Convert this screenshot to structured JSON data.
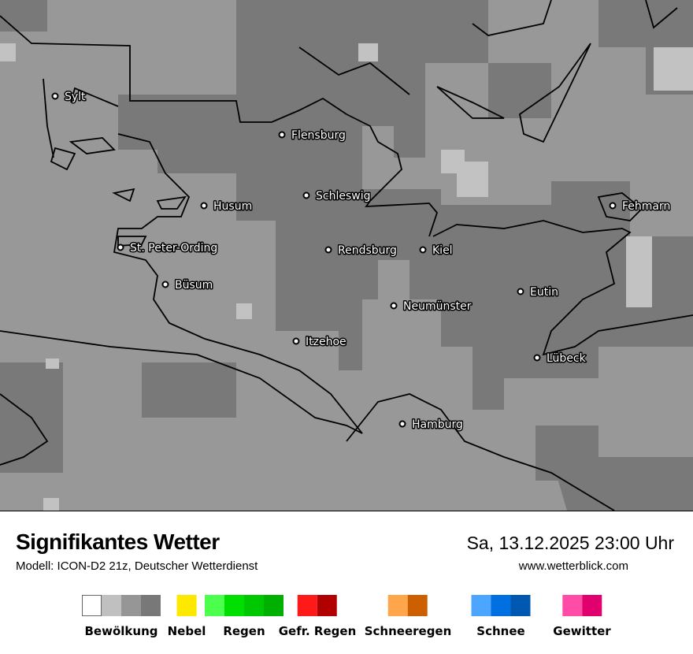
{
  "map": {
    "cities": [
      {
        "name": "Sylt"
      },
      {
        "name": "Flensburg"
      },
      {
        "name": "Schleswig"
      },
      {
        "name": "Husum"
      },
      {
        "name": "St. Peter-Ording"
      },
      {
        "name": "Rendsburg"
      },
      {
        "name": "Kiel"
      },
      {
        "name": "Fehmarn"
      },
      {
        "name": "Büsum"
      },
      {
        "name": "Eutin"
      },
      {
        "name": "Neumünster"
      },
      {
        "name": "Itzehoe"
      },
      {
        "name": "Lübeck"
      },
      {
        "name": "Hamburg"
      }
    ]
  },
  "footer": {
    "title": "Signifikantes Wetter",
    "model": "Modell: ICON-D2 21z, Deutscher Wetterdienst",
    "datetime": "Sa, 13.12.2025 23:00 Uhr",
    "website": "www.wetterblick.com"
  },
  "legend": [
    {
      "label": "Bewölkung",
      "colors": [
        "#ffffff",
        "#c0c0c0",
        "#969696",
        "#787878"
      ]
    },
    {
      "label": "Nebel",
      "colors": [
        "#ffe800"
      ]
    },
    {
      "label": "Regen",
      "colors": [
        "#4cff4c",
        "#00e000",
        "#00c800",
        "#00b000"
      ]
    },
    {
      "label": "Gefr. Regen",
      "colors": [
        "#ff1a1a",
        "#b00000"
      ]
    },
    {
      "label": "Schneeregen",
      "colors": [
        "#ffa64c",
        "#cc5f00"
      ]
    },
    {
      "label": "Schnee",
      "colors": [
        "#4ca6ff",
        "#0070e0",
        "#0058b0"
      ]
    },
    {
      "label": "Gewitter",
      "colors": [
        "#ff4ca6",
        "#e0006e"
      ]
    }
  ]
}
